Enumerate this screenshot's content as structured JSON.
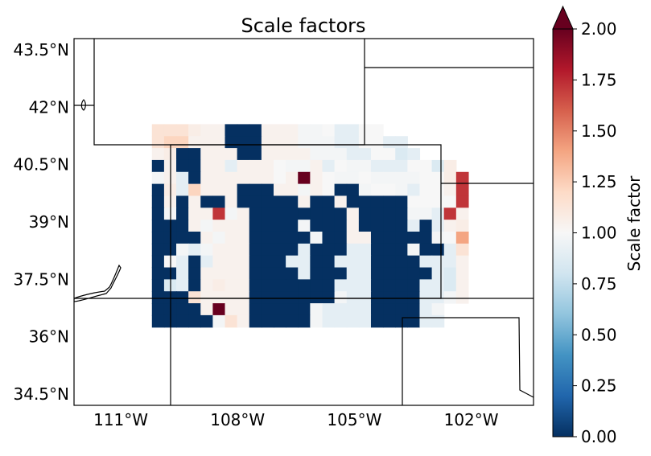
{
  "chart_data": {
    "type": "heatmap",
    "title": "Scale factors",
    "x_tick_labels": [
      "111°W",
      "108°W",
      "105°W",
      "102°W"
    ],
    "y_tick_labels": [
      "43.5°N",
      "42°N",
      "40.5°N",
      "39°N",
      "37.5°N",
      "36°N",
      "34.5°N"
    ],
    "x_ticks": [
      -111,
      -108,
      -105,
      -102
    ],
    "y_ticks": [
      43.5,
      42,
      40.5,
      39,
      37.5,
      36,
      34.5
    ],
    "xlim": [
      -112.2,
      -100.4
    ],
    "ylim": [
      34.2,
      43.8
    ],
    "colorbar": {
      "label": "Scale factor",
      "range": [
        0,
        2
      ],
      "extend": "max",
      "colormap": "RdBu_r",
      "tick_labels": [
        "0.00",
        "0.25",
        "0.50",
        "0.75",
        "1.00",
        "1.25",
        "1.50",
        "1.75",
        "2.00"
      ],
      "ticks": [
        0,
        0.25,
        0.5,
        0.75,
        1.0,
        1.25,
        1.5,
        1.75,
        2.0
      ]
    },
    "grid": {
      "lon_start": -110.2,
      "lat_top": 41.56,
      "cell_lon": 0.3125,
      "cell_lat": 0.3125,
      "columns": 26,
      "rows": 17,
      "legend": {
        "N": 0.0,
        "l": 0.85,
        "b": 0.9,
        "w": 0.98,
        "W": 1.0,
        "c": 1.04,
        "p": 1.07,
        "q": 1.14,
        "P": 1.22,
        "S": 1.4,
        "r": 1.72,
        "D": 2.0,
        ".": null
      },
      "rows_data": [
        "qqqpccNNNcccwwWbbWW.......",
        "qPPcccNNNcccwwwbbWWbb.....",
        "cpNNcccNNccccwwwbbWWlb....",
        "NcNNccbcccWwwcbWwwbbbWWlp.",
        "wcbNccccccWcDcWwwWwwwwWWpr",
        "NpbPcccNNNccwcWNNwWWwbWWcr",
        "NcNcNNcNNNNNcNNcNNNNNWWWWr",
        "NwNccrwcNNNNNNNNcNNNNwwbrcq",
        "NNNcwcccNNNNwNNNcNNNNbNbcp",
        "NNNNcwccNNNNNwNNccNNNNNwWS",
        "NNwbwcccNNNNbNNNbbNNNwNNbq",
        "NWbNbcccNNNbbNNbbbNNNNbbbc",
        "NNbNccccNNNNbNNNbbNNNNNblc",
        "NlbNcpccNNNNNNNbbbNNNNbblc",
        "NNNqccccNNNNNNNwbbNNNNbbwc",
        "NNNNcDccNNNNNwbbbbNNNNbw..",
        "NNNNNwqcNNNNNwbbbbNNNNbb.."
      ]
    }
  }
}
